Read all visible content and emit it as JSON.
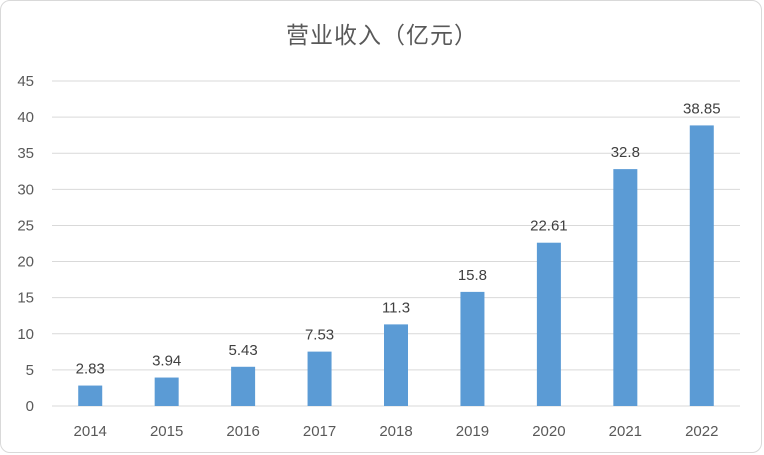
{
  "chart_data": {
    "type": "bar",
    "title": "营业收入（亿元）",
    "categories": [
      "2014",
      "2015",
      "2016",
      "2017",
      "2018",
      "2019",
      "2020",
      "2021",
      "2022"
    ],
    "values": [
      2.83,
      3.94,
      5.43,
      7.53,
      11.3,
      15.8,
      22.61,
      32.8,
      38.85
    ],
    "data_labels": [
      "2.83",
      "3.94",
      "5.43",
      "7.53",
      "11.3",
      "15.8",
      "22.61",
      "32.8",
      "38.85"
    ],
    "ylim": [
      0,
      45
    ],
    "yticks": [
      "0",
      "5",
      "10",
      "15",
      "20",
      "25",
      "30",
      "35",
      "40",
      "45"
    ],
    "xlabel": "",
    "ylabel": "",
    "grid": true,
    "legend": "none",
    "bar_color": "#5b9bd5",
    "grid_color": "#d9d9d9"
  }
}
